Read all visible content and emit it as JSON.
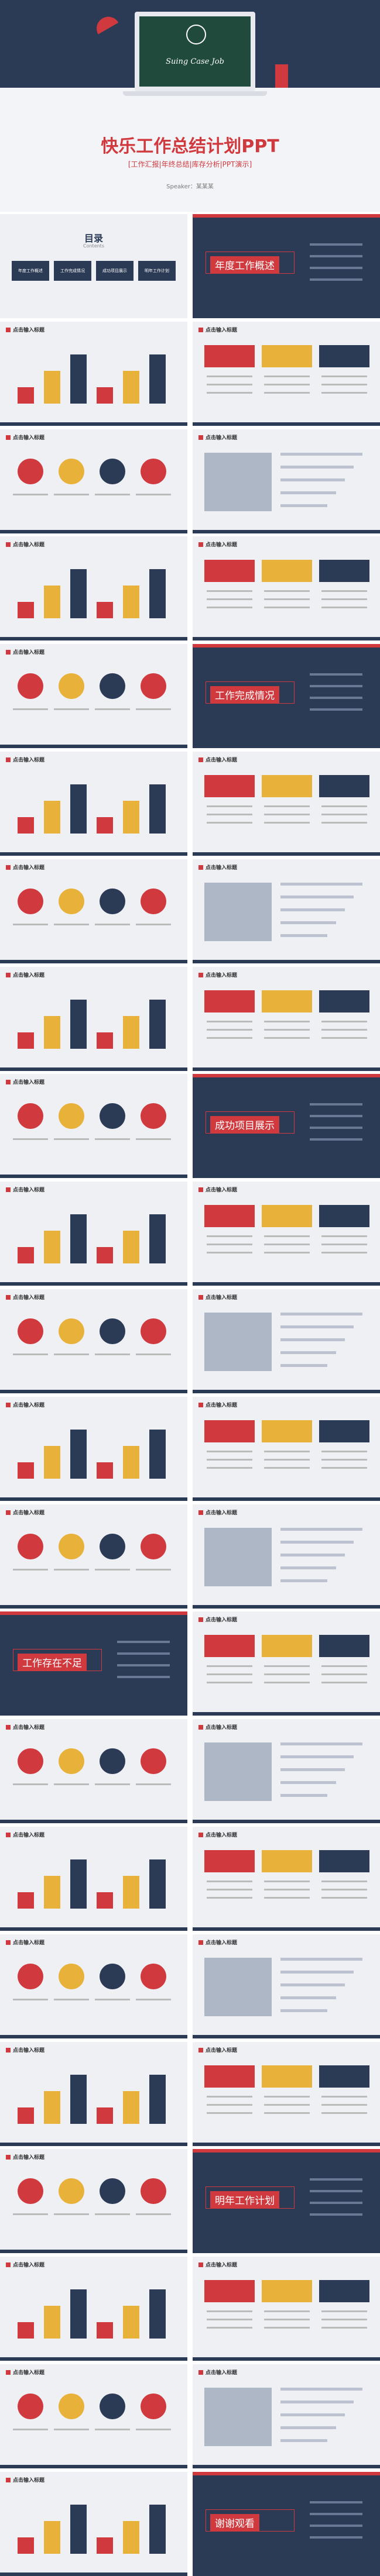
{
  "header": {
    "title": "快乐工作总结计划PPT",
    "subtitle": "[工作汇报|年终总结|库存分析|PPT演示]",
    "speaker": "Speaker：某某某",
    "laptop_text": "Suing Case Job"
  },
  "toc": {
    "title": "目录",
    "subtitle": "Contents",
    "items": [
      "年度工作概述",
      "工作完成情况",
      "成功项目展示",
      "明年工作计划"
    ]
  },
  "slides": [
    {
      "kind": "toc"
    },
    {
      "kind": "section",
      "title": "年度工作概述"
    },
    {
      "kind": "content",
      "title": "点击输入标题"
    },
    {
      "kind": "content",
      "title": "点击输入标题"
    },
    {
      "kind": "content",
      "title": "点击输入标题"
    },
    {
      "kind": "content",
      "title": "点击输入标题"
    },
    {
      "kind": "content",
      "title": "点击输入标题"
    },
    {
      "kind": "content",
      "title": "点击输入标题"
    },
    {
      "kind": "content",
      "title": "点击输入标题"
    },
    {
      "kind": "section",
      "title": "工作完成情况"
    },
    {
      "kind": "content",
      "title": "点击输入标题"
    },
    {
      "kind": "content",
      "title": "点击输入标题"
    },
    {
      "kind": "content",
      "title": "点击输入标题"
    },
    {
      "kind": "content",
      "title": "点击输入标题"
    },
    {
      "kind": "content",
      "title": "点击输入标题"
    },
    {
      "kind": "content",
      "title": "点击输入标题"
    },
    {
      "kind": "content",
      "title": "点击输入标题"
    },
    {
      "kind": "section",
      "title": "成功项目展示"
    },
    {
      "kind": "content",
      "title": "点击输入标题"
    },
    {
      "kind": "content",
      "title": "点击输入标题"
    },
    {
      "kind": "content",
      "title": "点击输入标题"
    },
    {
      "kind": "content",
      "title": "点击输入标题"
    },
    {
      "kind": "content",
      "title": "点击输入标题"
    },
    {
      "kind": "content",
      "title": "点击输入标题"
    },
    {
      "kind": "content",
      "title": "点击输入标题"
    },
    {
      "kind": "content",
      "title": "点击输入标题"
    },
    {
      "kind": "section",
      "title": "工作存在不足"
    },
    {
      "kind": "content",
      "title": "点击输入标题"
    },
    {
      "kind": "content",
      "title": "点击输入标题"
    },
    {
      "kind": "content",
      "title": "点击输入标题"
    },
    {
      "kind": "content",
      "title": "点击输入标题"
    },
    {
      "kind": "content",
      "title": "点击输入标题"
    },
    {
      "kind": "content",
      "title": "点击输入标题"
    },
    {
      "kind": "content",
      "title": "点击输入标题"
    },
    {
      "kind": "content",
      "title": "点击输入标题"
    },
    {
      "kind": "content",
      "title": "点击输入标题"
    },
    {
      "kind": "content",
      "title": "点击输入标题"
    },
    {
      "kind": "section",
      "title": "明年工作计划"
    },
    {
      "kind": "content",
      "title": "点击输入标题"
    },
    {
      "kind": "content",
      "title": "点击输入标题"
    },
    {
      "kind": "content",
      "title": "点击输入标题"
    },
    {
      "kind": "content",
      "title": "点击输入标题"
    },
    {
      "kind": "content",
      "title": "点击输入标题"
    },
    {
      "kind": "section",
      "title": "谢谢观看"
    }
  ]
}
